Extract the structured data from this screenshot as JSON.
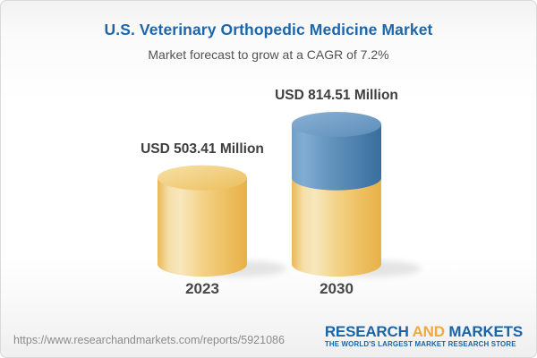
{
  "header": {
    "title": "U.S. Veterinary Orthopedic Medicine Market",
    "subtitle": "Market forecast to grow at a CAGR of 7.2%"
  },
  "chart_data": {
    "type": "bar",
    "subtype": "3d-cylinder",
    "title": "U.S. Veterinary Orthopedic Medicine Market",
    "subtitle": "Market forecast to grow at a CAGR of 7.2%",
    "cagr": "7.2%",
    "unit": "USD Million",
    "categories": [
      "2023",
      "2030"
    ],
    "values": [
      503.41,
      814.51
    ],
    "value_labels": [
      "USD 503.41 Million",
      "USD 814.51 Million"
    ],
    "stacked_growth": true,
    "segment_meaning": "2030 cylinder is stacked: yellow base equals the 2023 value, blue top is growth to 814.51",
    "ylim": [
      0,
      814.51
    ],
    "grid": false,
    "axes_shown": false,
    "legend": "none",
    "colors": {
      "base_segment_yellow": "#F0C468",
      "growth_segment_blue": "#4A7FAF"
    }
  },
  "footer": {
    "url": "https://www.researchandmarkets.com/reports/5921086",
    "logo": {
      "word_research": "RESEARCH",
      "word_and": "AND",
      "word_markets": "MARKETS",
      "tagline": "THE WORLD'S LARGEST MARKET RESEARCH STORE"
    }
  },
  "colors": {
    "title_blue": "#1B66AC",
    "logo_blue": "#1A65A8",
    "logo_gold": "#EFAA3C",
    "label_gray": "#3E3E3E",
    "url_gray": "#8B8B8B"
  }
}
